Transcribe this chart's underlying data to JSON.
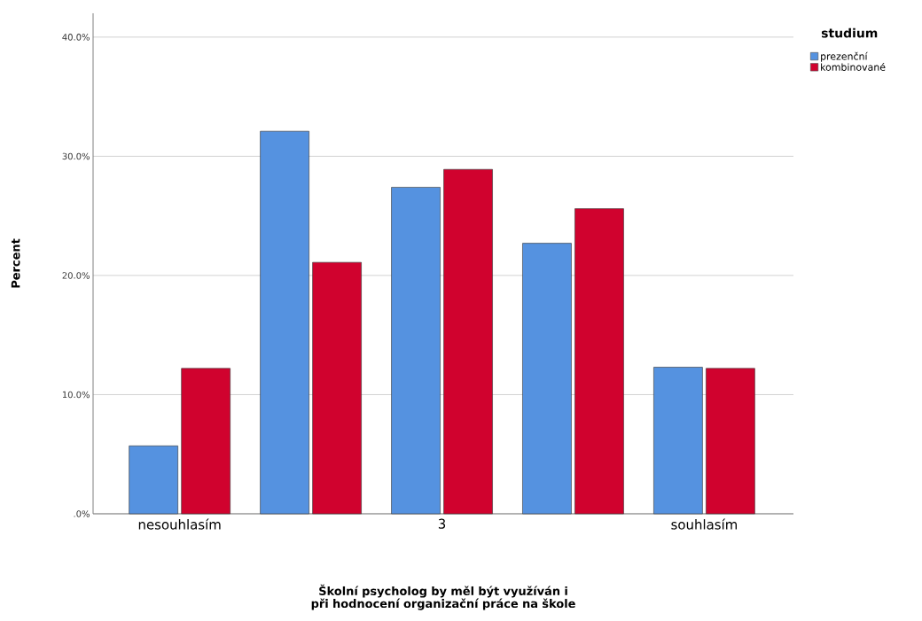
{
  "chart_data": {
    "type": "bar",
    "xlabel": "Školní psycholog by měl být využíván i při hodnocení organizační práce na škole",
    "ylabel": "Percent",
    "legend_title": "studium",
    "categories": [
      "nesouhlasím",
      null,
      "3",
      null,
      "souhlasím"
    ],
    "series": [
      {
        "name": "prezenční",
        "color": "#5592e0",
        "values": [
          5.7,
          32.1,
          27.4,
          22.7,
          12.3
        ]
      },
      {
        "name": "kombinované",
        "color": "#d0022e",
        "values": [
          12.2,
          21.1,
          28.9,
          25.6,
          12.2
        ]
      }
    ],
    "ylim": [
      0,
      42
    ],
    "yticks": [
      {
        "value": 0,
        "label": ".0%"
      },
      {
        "value": 10,
        "label": "10.0%"
      },
      {
        "value": 20,
        "label": "20.0%"
      },
      {
        "value": 30,
        "label": "30.0%"
      },
      {
        "value": 40,
        "label": "40.0%"
      }
    ],
    "grid": "y",
    "legend": "top right"
  }
}
